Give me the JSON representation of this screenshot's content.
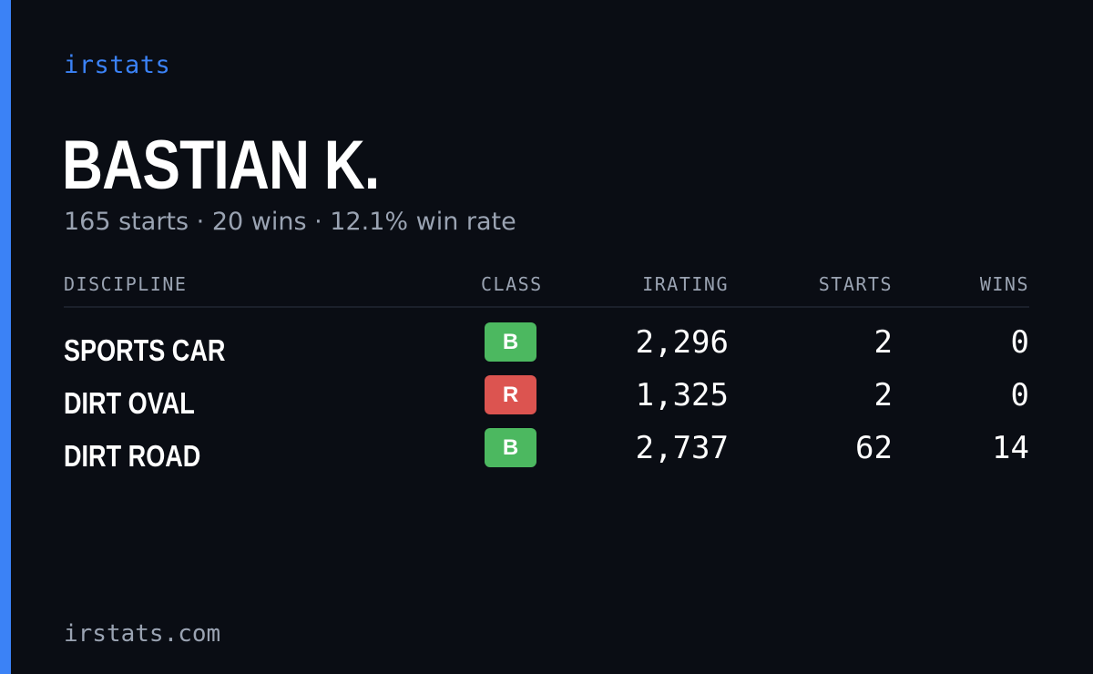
{
  "brand": "irstats",
  "driver": {
    "name": "BASTIAN K.",
    "summary": "165 starts · 20 wins · 12.1% win rate"
  },
  "table": {
    "headers": {
      "discipline": "DISCIPLINE",
      "class": "CLASS",
      "irating": "IRATING",
      "starts": "STARTS",
      "wins": "WINS"
    },
    "rows": [
      {
        "discipline": "SPORTS CAR",
        "class": "B",
        "class_color": "#4cb860",
        "irating": "2,296",
        "starts": "2",
        "wins": "0"
      },
      {
        "discipline": "DIRT OVAL",
        "class": "R",
        "class_color": "#dc5450",
        "irating": "1,325",
        "starts": "2",
        "wins": "0"
      },
      {
        "discipline": "DIRT ROAD",
        "class": "B",
        "class_color": "#4cb860",
        "irating": "2,737",
        "starts": "62",
        "wins": "14"
      }
    ]
  },
  "footer": "irstats.com",
  "colors": {
    "accent": "#3b82f6",
    "background": "#0a0d14",
    "muted_text": "#9aa3b2"
  }
}
